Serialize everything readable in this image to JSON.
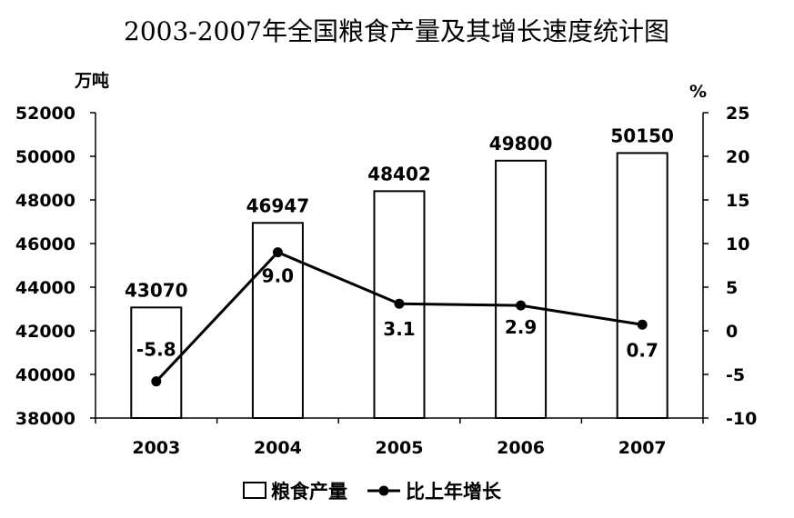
{
  "chart_data": {
    "type": "bar",
    "title": "2003-2007年全国粮食产量及其增长速度统计图",
    "y_left_unit": "万吨",
    "y_right_unit": "%",
    "categories": [
      "2003",
      "2004",
      "2005",
      "2006",
      "2007"
    ],
    "y_left_ticks": [
      "52000",
      "50000",
      "48000",
      "46000",
      "44000",
      "42000",
      "40000",
      "38000"
    ],
    "y_right_ticks": [
      "25",
      "20",
      "15",
      "10",
      "5",
      "0",
      "-5",
      "-10"
    ],
    "ylim_left": [
      38000,
      52000
    ],
    "ylim_right": [
      -10,
      25
    ],
    "series": [
      {
        "name": "粮食产量",
        "type": "bar",
        "axis": "left",
        "values": [
          43070,
          46947,
          48402,
          49800,
          50150
        ],
        "labels": [
          "43070",
          "46947",
          "48402",
          "49800",
          "50150"
        ]
      },
      {
        "name": "比上年增长",
        "type": "line",
        "axis": "right",
        "values": [
          -5.8,
          9.0,
          3.1,
          2.9,
          0.7
        ],
        "labels": [
          "-5.8",
          "9.0",
          "3.1",
          "2.9",
          "0.7"
        ]
      }
    ],
    "legend": {
      "position": "bottom",
      "items": [
        "粮食产量",
        "比上年增长"
      ]
    },
    "grid": false,
    "colors": {
      "bar_fill": "#ffffff",
      "bar_stroke": "#000000",
      "line": "#000000",
      "axis": "#000000"
    }
  }
}
